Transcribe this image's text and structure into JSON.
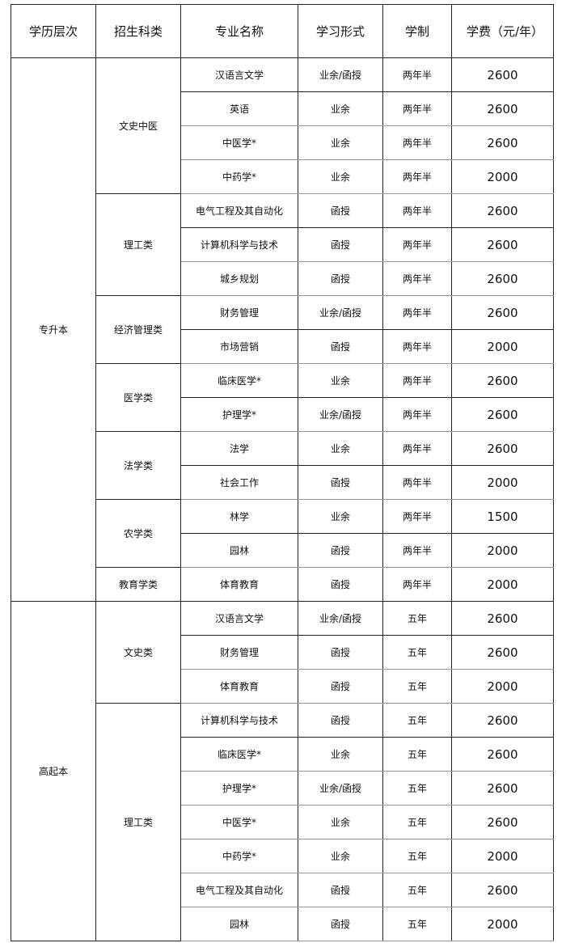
{
  "headers": [
    "学历层次",
    "招生科类",
    "专业名称",
    "学习形式",
    "学制",
    "学费（元/年）"
  ],
  "levels": [
    {
      "name": "专升本",
      "groups": [
        {
          "category": "文史中医",
          "rows": [
            [
              "汉语言文学",
              "业余/函授",
              "两年半",
              "2600"
            ],
            [
              "英语",
              "业余",
              "两年半",
              "2600"
            ],
            [
              "中医学*",
              "业余",
              "两年半",
              "2600"
            ],
            [
              "中药学*",
              "业余",
              "两年半",
              "2000"
            ]
          ]
        },
        {
          "category": "理工类",
          "rows": [
            [
              "电气工程及其自动化",
              "函授",
              "两年半",
              "2600"
            ],
            [
              "计算机科学与技术",
              "函授",
              "两年半",
              "2600"
            ],
            [
              "城乡规划",
              "函授",
              "两年半",
              "2600"
            ]
          ]
        },
        {
          "category": "经济管理类",
          "rows": [
            [
              "财务管理",
              "业余/函授",
              "两年半",
              "2600"
            ],
            [
              "市场营销",
              "函授",
              "两年半",
              "2000"
            ]
          ]
        },
        {
          "category": "医学类",
          "rows": [
            [
              "临床医学*",
              "业余",
              "两年半",
              "2600"
            ],
            [
              "护理学*",
              "业余/函授",
              "两年半",
              "2600"
            ]
          ]
        },
        {
          "category": "法学类",
          "rows": [
            [
              "法学",
              "业余",
              "两年半",
              "2600"
            ],
            [
              "社会工作",
              "函授",
              "两年半",
              "2000"
            ]
          ]
        },
        {
          "category": "农学类",
          "rows": [
            [
              "林学",
              "业余",
              "两年半",
              "1500"
            ],
            [
              "园林",
              "函授",
              "两年半",
              "2000"
            ]
          ]
        },
        {
          "category": "教育学类",
          "rows": [
            [
              "体育教育",
              "函授",
              "两年半",
              "2000"
            ]
          ]
        }
      ]
    },
    {
      "name": "高起本",
      "groups": [
        {
          "category": "文史类",
          "rows": [
            [
              "汉语言文学",
              "业余/函授",
              "五年",
              "2600"
            ],
            [
              "财务管理",
              "函授",
              "五年",
              "2600"
            ],
            [
              "体育教育",
              "函授",
              "五年",
              "2000"
            ]
          ]
        },
        {
          "category": "理工类",
          "rows": [
            [
              "计算机科学与技术",
              "函授",
              "五年",
              "2600"
            ],
            [
              "临床医学*",
              "业余",
              "五年",
              "2600"
            ],
            [
              "护理学*",
              "业余/函授",
              "五年",
              "2600"
            ],
            [
              "中医学*",
              "业余",
              "五年",
              "2600"
            ],
            [
              "中药学*",
              "业余",
              "五年",
              "2000"
            ],
            [
              "电气工程及其自动化",
              "函授",
              "五年",
              "2600"
            ],
            [
              "园林",
              "函授",
              "五年",
              "2000"
            ]
          ]
        }
      ]
    }
  ]
}
